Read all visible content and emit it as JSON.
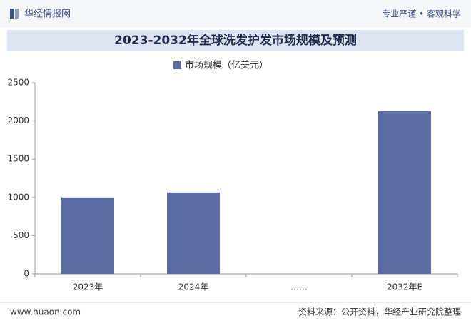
{
  "header": {
    "brand": "华经情报网",
    "slogan": "专业严谨 • 客观科学"
  },
  "chart_data": {
    "type": "bar",
    "title": "2023-2032年全球洗发护发市场规模及预测",
    "categories": [
      "2023年",
      "2024年",
      "……",
      "2032年E"
    ],
    "series": [
      {
        "name": "市场规模（亿美元）",
        "color": "#5b6ca3",
        "values": [
          1000,
          1065,
          null,
          2130
        ]
      }
    ],
    "ylim": [
      0,
      2500
    ],
    "yticks": [
      0,
      500,
      1000,
      1500,
      2000,
      2500
    ],
    "grid": false,
    "legend": "top"
  },
  "footer": {
    "website": "www.huaon.com",
    "source": "资料来源：公开资料，华经产业研究院整理"
  }
}
